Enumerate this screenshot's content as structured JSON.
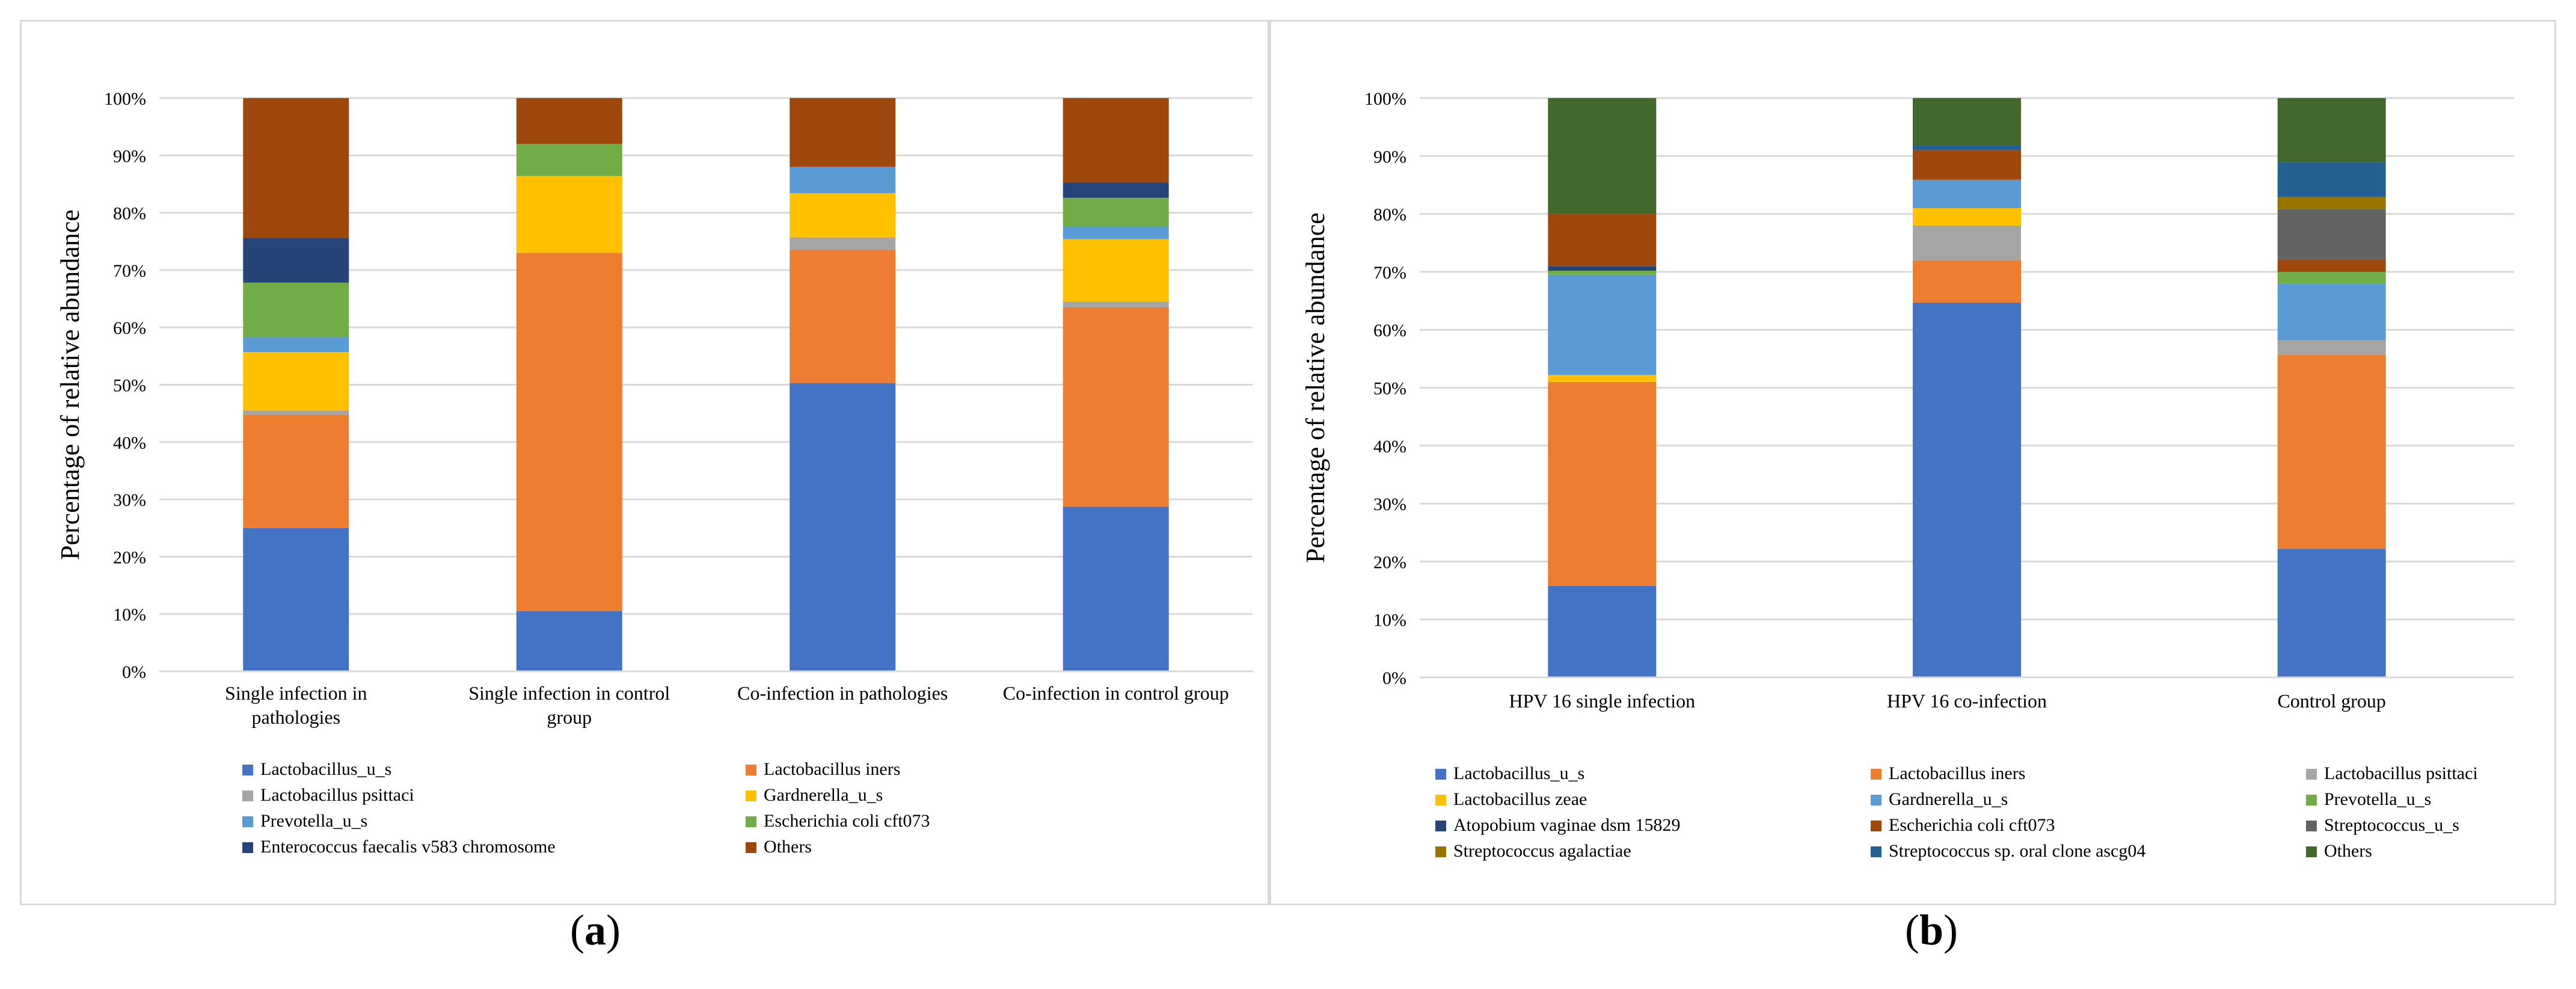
{
  "chart_data": [
    {
      "type": "stacked-bar-100",
      "panel": "a",
      "ylabel": "Percentage of relative abundance",
      "ylim": [
        0,
        100
      ],
      "yticks": [
        "0%",
        "10%",
        "20%",
        "30%",
        "40%",
        "50%",
        "60%",
        "70%",
        "80%",
        "90%",
        "100%"
      ],
      "categories": [
        [
          "Single infection in",
          "pathologies"
        ],
        [
          "Single infection in control",
          "group"
        ],
        [
          "Co-infection in pathologies"
        ],
        [
          "Co-infection in control group"
        ]
      ],
      "series": [
        {
          "name": "Lactobacillus_u_s",
          "color": "#4472C4",
          "values": [
            25,
            10.5,
            50.3,
            28.7
          ]
        },
        {
          "name": "Lactobacillus iners",
          "color": "#ED7D31",
          "values": [
            19.7,
            62.5,
            23.2,
            34.8
          ]
        },
        {
          "name": "Lactobacillus psittaci",
          "color": "#A5A5A5",
          "values": [
            0.8,
            0,
            2.2,
            1
          ]
        },
        {
          "name": "Gardnerella_u_s",
          "color": "#FFC000",
          "values": [
            10.2,
            13.4,
            7.7,
            10.9
          ]
        },
        {
          "name": "Prevotella_u_s",
          "color": "#5B9BD5",
          "values": [
            2.6,
            0,
            4.6,
            2.2
          ]
        },
        {
          "name": "Escherichia coli cft073",
          "color": "#70AD47",
          "values": [
            9.5,
            5.6,
            0,
            5
          ]
        },
        {
          "name": "Enterococcus faecalis v583 chromosome",
          "color": "#264478",
          "values": [
            7.8,
            0,
            0,
            2.7
          ]
        },
        {
          "name": "Others",
          "color": "#9E480E",
          "values": [
            24.4,
            8,
            12,
            14.7
          ]
        }
      ],
      "legend_columns": 2
    },
    {
      "type": "stacked-bar-100",
      "panel": "b",
      "ylabel": "Percentage of relative abundance",
      "ylim": [
        0,
        100
      ],
      "yticks": [
        "0%",
        "10%",
        "20%",
        "30%",
        "40%",
        "50%",
        "60%",
        "70%",
        "80%",
        "90%",
        "100%"
      ],
      "categories": [
        [
          "HPV 16 single infection"
        ],
        [
          "HPV 16 co-infection"
        ],
        [
          "Control group"
        ]
      ],
      "series": [
        {
          "name": "Lactobacillus_u_s",
          "color": "#4472C4",
          "values": [
            15.8,
            64.7,
            22.2
          ]
        },
        {
          "name": "Lactobacillus iners",
          "color": "#ED7D31",
          "values": [
            35.2,
            7.3,
            33.5
          ]
        },
        {
          "name": "Lactobacillus psittaci",
          "color": "#A5A5A5",
          "values": [
            0,
            6,
            2.5
          ]
        },
        {
          "name": "Lactobacillus zeae",
          "color": "#FFC000",
          "values": [
            1.2,
            3,
            0
          ]
        },
        {
          "name": "Gardnerella_u_s",
          "color": "#5B9BD5",
          "values": [
            17.3,
            4.9,
            9.8
          ]
        },
        {
          "name": "Prevotella_u_s",
          "color": "#70AD47",
          "values": [
            0.7,
            0,
            2
          ]
        },
        {
          "name": "Atopobium vaginae dsm 15829",
          "color": "#264478",
          "values": [
            0.8,
            0,
            0
          ]
        },
        {
          "name": "Escherichia coli cft073",
          "color": "#9E480E",
          "values": [
            9,
            5.1,
            2.2
          ]
        },
        {
          "name": "Streptococcus_u_s",
          "color": "#636363",
          "values": [
            0,
            0,
            8.6
          ]
        },
        {
          "name": "Streptococcus agalactiae",
          "color": "#997300",
          "values": [
            0,
            0,
            2.1
          ]
        },
        {
          "name": "Streptococcus sp. oral clone ascg04",
          "color": "#255E91",
          "values": [
            0,
            0.8,
            6
          ]
        },
        {
          "name": "Others",
          "color": "#43682B",
          "values": [
            20,
            8.2,
            11.1
          ]
        }
      ],
      "legend_columns": 3
    }
  ],
  "labels": {
    "a": "a",
    "b": "b",
    "open": "(",
    "close": ")"
  }
}
